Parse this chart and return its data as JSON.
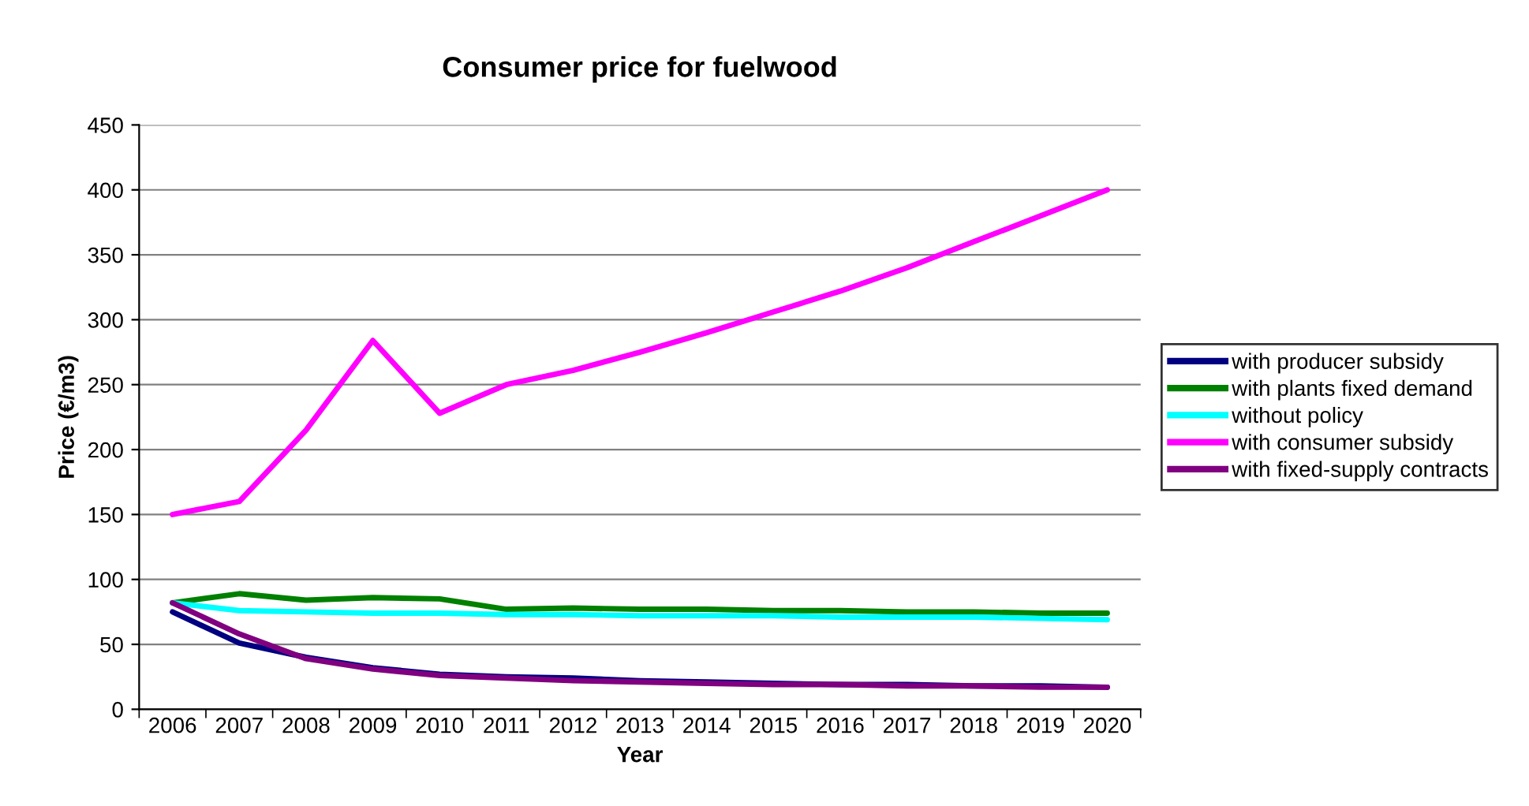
{
  "chart_data": {
    "type": "line",
    "title": "Consumer price for fuelwood",
    "xlabel": "Year",
    "ylabel": "Price (€/m3)",
    "categories": [
      "2006",
      "2007",
      "2008",
      "2009",
      "2010",
      "2011",
      "2012",
      "2013",
      "2014",
      "2015",
      "2016",
      "2017",
      "2018",
      "2019",
      "2020"
    ],
    "series": [
      {
        "name": "with producer subsidy",
        "color": "#000080",
        "values": [
          75,
          51,
          40,
          32,
          27,
          25,
          24,
          22,
          21,
          20,
          19,
          19,
          18,
          18,
          17
        ]
      },
      {
        "name": "with plants fixed demand",
        "color": "#008000",
        "values": [
          82,
          89,
          84,
          86,
          85,
          77,
          78,
          77,
          77,
          76,
          76,
          75,
          75,
          74,
          74
        ]
      },
      {
        "name": "without policy",
        "color": "#00ffff",
        "values": [
          82,
          76,
          75,
          74,
          74,
          73,
          73,
          72,
          72,
          72,
          71,
          71,
          71,
          70,
          69
        ]
      },
      {
        "name": "with consumer subsidy",
        "color": "#ff00ff",
        "values": [
          150,
          160,
          215,
          284,
          228,
          250,
          261,
          275,
          290,
          306,
          322,
          340,
          360,
          380,
          400
        ]
      },
      {
        "name": "with fixed-supply contracts",
        "color": "#800080",
        "values": [
          82,
          58,
          39,
          31,
          26,
          24,
          22,
          21,
          20,
          19,
          19,
          18,
          18,
          17,
          17
        ]
      }
    ],
    "ylim": [
      0,
      450
    ],
    "yticks": [
      0,
      50,
      100,
      150,
      200,
      250,
      300,
      350,
      400,
      450
    ],
    "grid": "y",
    "legend": "right",
    "marker": "none",
    "line_style": "solid"
  }
}
